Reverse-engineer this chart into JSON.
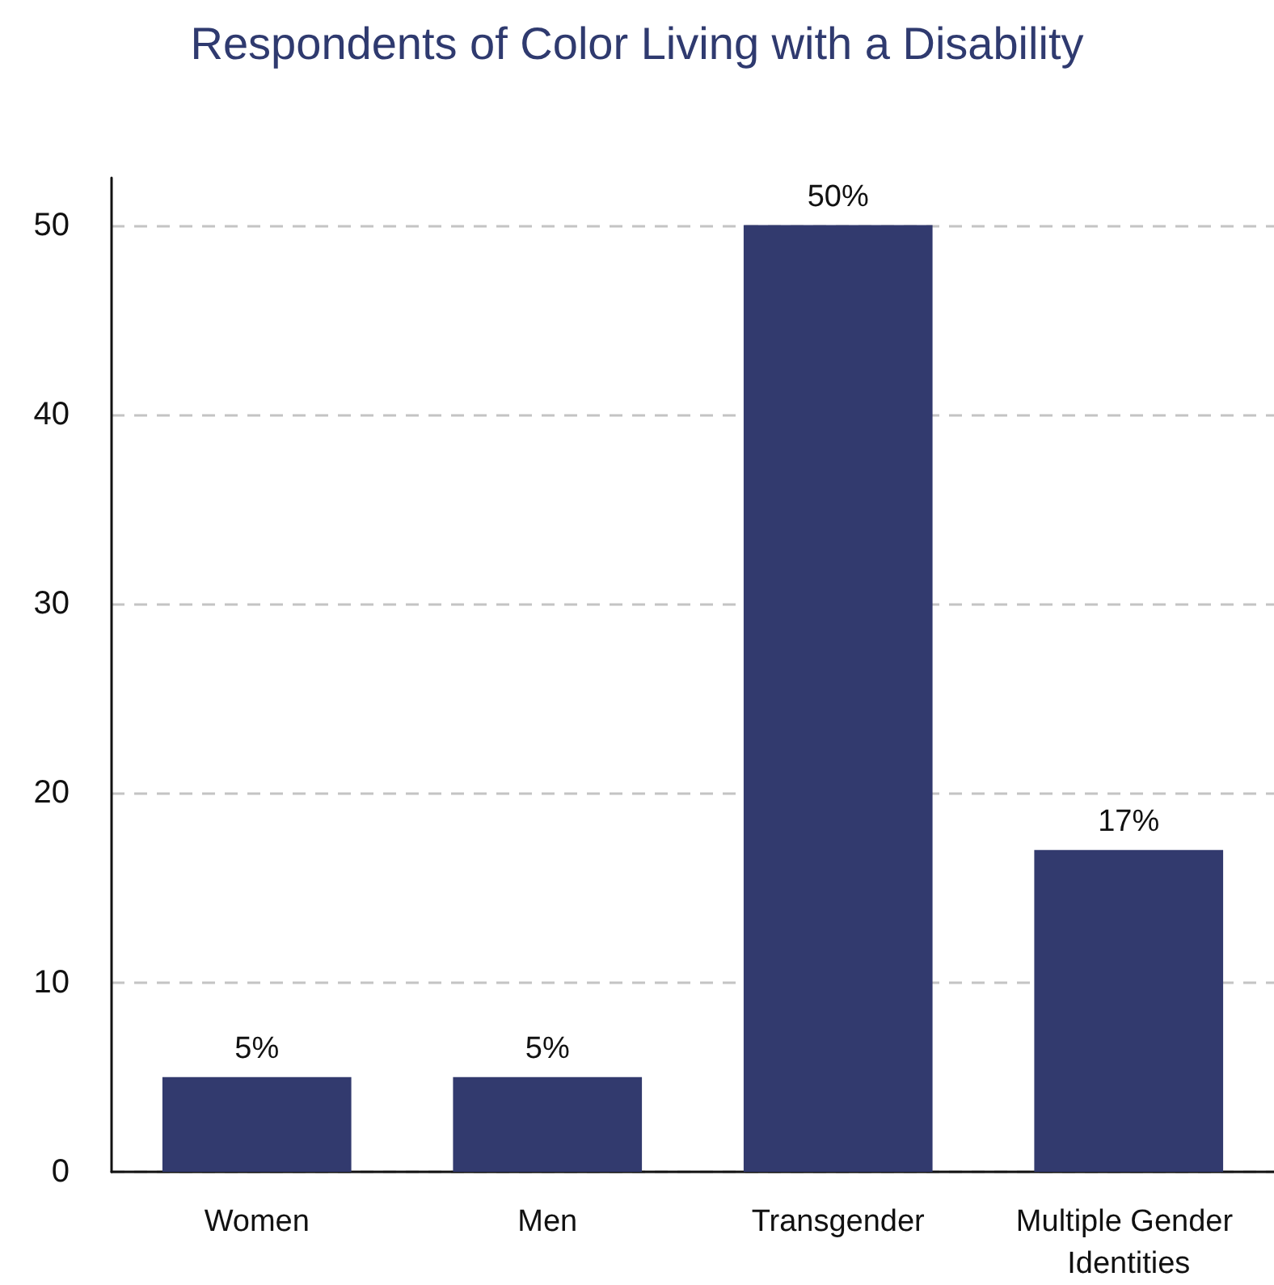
{
  "chart_data": {
    "type": "bar",
    "title": "Respondents of Color Living with a Disability",
    "categories": [
      "Women",
      "Men",
      "Transgender",
      "Multiple Gender Identities"
    ],
    "values": [
      5,
      5,
      50,
      17
    ],
    "value_labels": [
      "5%",
      "5%",
      "50%",
      "17%"
    ],
    "color": "#323a6e",
    "ylim": [
      0,
      52.5
    ],
    "yticks": [
      0,
      10,
      20,
      30,
      40,
      50
    ],
    "grid": "y"
  }
}
